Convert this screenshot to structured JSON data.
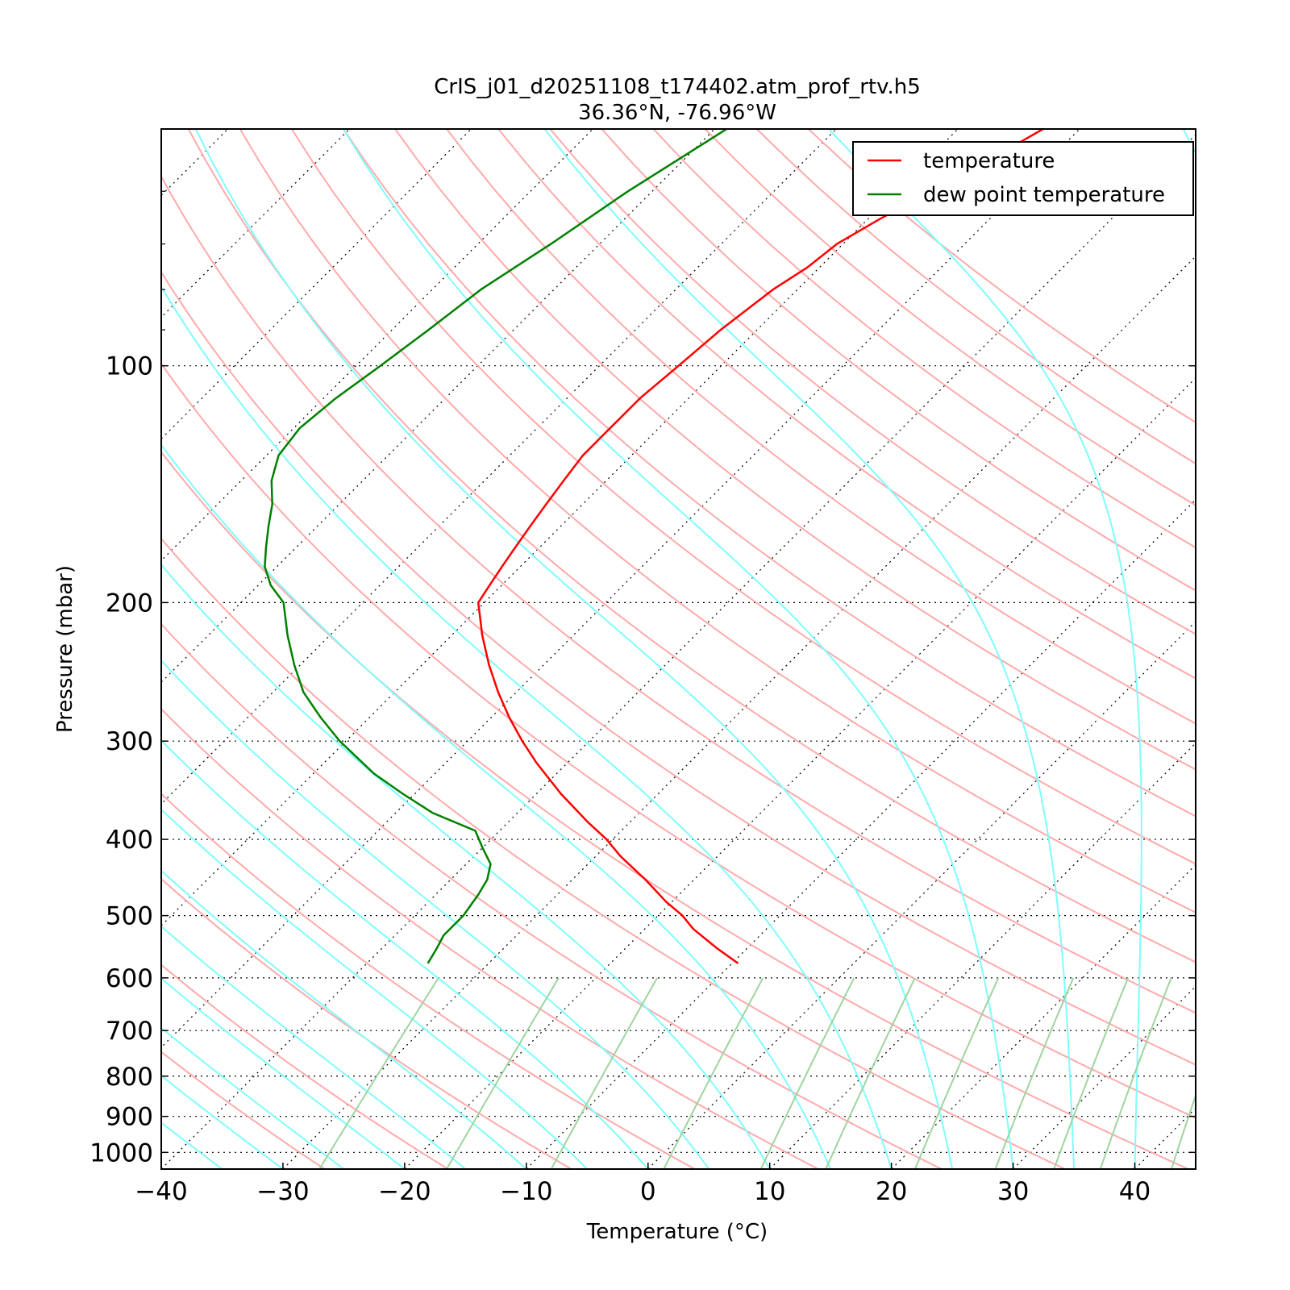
{
  "chart_data": {
    "type": "line",
    "title": "CrIS_j01_d20251108_t174402.atm_prof_rtv.h5",
    "subtitle": "36.36°N, -76.96°W",
    "xlabel": "Temperature (°C)",
    "ylabel": "Pressure (mbar)",
    "xlim": [
      -40,
      45
    ],
    "ylim": [
      1050,
      50
    ],
    "y_scale": "log",
    "x_skew": true,
    "x_ticks": [
      -40,
      -30,
      -20,
      -10,
      0,
      10,
      20,
      30,
      40
    ],
    "x_tick_labels": [
      "−40",
      "−30",
      "−20",
      "−10",
      "0",
      "10",
      "20",
      "30",
      "40"
    ],
    "y_ticks": [
      100,
      200,
      300,
      400,
      500,
      600,
      700,
      800,
      900,
      1000
    ],
    "y_tick_labels": [
      "100",
      "200",
      "300",
      "400",
      "500",
      "600",
      "700",
      "800",
      "900",
      "1000"
    ],
    "grid": true,
    "legend_position": "top-right",
    "background_lines": {
      "dry_adiabats_color": "#ffaaaa",
      "moist_adiabats_color": "#7ffdfd",
      "mixing_ratio_color": "#9fd49f",
      "isotherm_color": "#000000"
    },
    "series": [
      {
        "name": "temperature",
        "color": "#ff0000",
        "pressure": [
          50,
          55,
          60,
          65,
          70,
          75,
          80,
          90,
          100,
          110,
          120,
          130,
          140,
          150,
          160,
          170,
          180,
          190,
          200,
          220,
          240,
          260,
          280,
          300,
          320,
          350,
          380,
          400,
          420,
          450,
          480,
          500,
          520,
          550,
          575
        ],
        "values": [
          -53,
          -55,
          -57,
          -59,
          -60.5,
          -61,
          -62,
          -63,
          -63.5,
          -64,
          -64,
          -64,
          -63.5,
          -63,
          -62.5,
          -62,
          -61.5,
          -61,
          -60.5,
          -57.5,
          -54.5,
          -51.5,
          -48.5,
          -45.5,
          -42.5,
          -38,
          -33.5,
          -30.5,
          -28,
          -24,
          -20.5,
          -18,
          -16,
          -12.5,
          -9.5
        ]
      },
      {
        "name": "dew point temperature",
        "color": "#008000",
        "pressure": [
          50,
          60,
          70,
          80,
          90,
          100,
          110,
          120,
          130,
          140,
          150,
          160,
          170,
          180,
          190,
          200,
          220,
          240,
          260,
          280,
          300,
          330,
          350,
          370,
          390,
          410,
          430,
          450,
          470,
          500,
          530,
          550,
          575
        ],
        "values": [
          -79,
          -82,
          -84,
          -86,
          -87,
          -88,
          -89,
          -89.5,
          -89,
          -87.5,
          -85.5,
          -84,
          -82.5,
          -81,
          -79,
          -76.5,
          -73.5,
          -70.5,
          -67.5,
          -64,
          -60.5,
          -55,
          -51,
          -47,
          -42,
          -40,
          -38,
          -37,
          -36.5,
          -36,
          -36,
          -35.5,
          -35
        ]
      }
    ]
  }
}
